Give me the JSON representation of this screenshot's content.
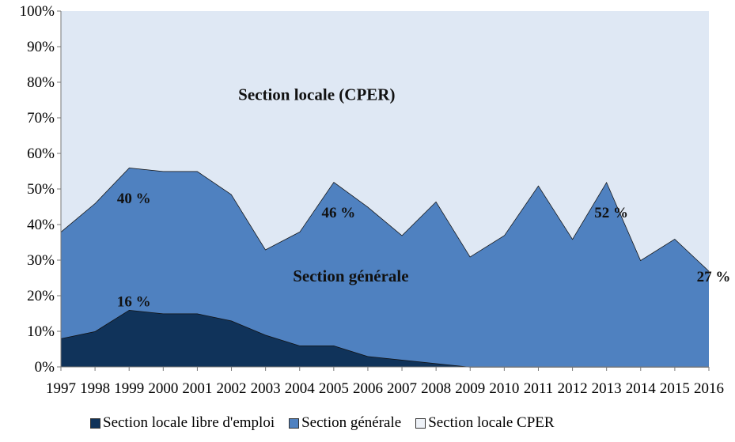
{
  "chart_data": {
    "type": "area",
    "stacked": true,
    "title": "",
    "xlabel": "",
    "ylabel": "",
    "ylim": [
      0,
      100
    ],
    "y_ticks": [
      "0%",
      "10%",
      "20%",
      "30%",
      "40%",
      "50%",
      "60%",
      "70%",
      "80%",
      "90%",
      "100%"
    ],
    "x": [
      "1997",
      "1998",
      "1999",
      "2000",
      "2001",
      "2002",
      "2003",
      "2004",
      "2005",
      "2006",
      "2007",
      "2008",
      "2009",
      "2010",
      "2011",
      "2012",
      "2013",
      "2014",
      "2015",
      "2016"
    ],
    "series": [
      {
        "name": "Section locale libre d'emploi",
        "color": "#10335a",
        "values": [
          8,
          10,
          16,
          15,
          15,
          13,
          9,
          6,
          6,
          3,
          2,
          1,
          0,
          0,
          0,
          0,
          0,
          0,
          0,
          0
        ]
      },
      {
        "name": "Section générale",
        "color": "#4f81c0",
        "values": [
          30,
          36,
          40,
          40,
          40,
          35.5,
          24,
          32,
          46,
          42,
          35,
          45.5,
          31,
          37,
          51,
          36,
          52,
          30,
          36,
          27
        ]
      },
      {
        "name": "Section locale CPER",
        "color": "#dfe8f4",
        "values": [
          62,
          54,
          44,
          45,
          45,
          51.5,
          67,
          62,
          48,
          55,
          63,
          53.5,
          69,
          63,
          49,
          64,
          48,
          70,
          64,
          73
        ]
      }
    ],
    "annotations": [
      {
        "text": "40 %",
        "x": "1999",
        "y": 46
      },
      {
        "text": "46 %",
        "x": "2005",
        "y": 42
      },
      {
        "text": "52 %",
        "x": "2013",
        "y": 42
      },
      {
        "text": "27 %",
        "x": "2016",
        "y": 24
      },
      {
        "text": "16 %",
        "x": "1999",
        "y": 17
      }
    ],
    "area_labels": [
      {
        "text": "Section locale (CPER)",
        "x": "2004.5",
        "y": 75
      },
      {
        "text": "Section générale",
        "x": "2005.5",
        "y": 24
      }
    ],
    "legend_position": "bottom"
  }
}
